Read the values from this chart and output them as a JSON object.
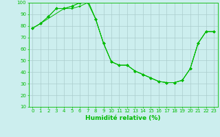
{
  "series": [
    {
      "x": [
        0,
        1,
        2,
        3,
        4,
        5,
        6,
        7,
        8,
        9,
        10,
        11,
        12,
        13,
        14,
        15,
        16,
        17,
        18,
        19,
        20,
        21,
        22,
        23
      ],
      "y": [
        78,
        82,
        88,
        95,
        95,
        97,
        100,
        102,
        86,
        65,
        49,
        46,
        46,
        41,
        38,
        35,
        32,
        31,
        31,
        33,
        43,
        65,
        75,
        75
      ],
      "marker": "D",
      "ms": 2.0
    },
    {
      "x": [
        0,
        1,
        4,
        5,
        6,
        7,
        8,
        9,
        10,
        11,
        12,
        13,
        14,
        15,
        16,
        17,
        18,
        19,
        20,
        21,
        22,
        23
      ],
      "y": [
        78,
        82,
        95,
        95,
        97,
        100,
        86,
        65,
        49,
        46,
        46,
        41,
        38,
        35,
        32,
        31,
        31,
        33,
        43,
        65,
        75,
        75
      ],
      "marker": ">",
      "ms": 2.0
    },
    {
      "x": [
        0,
        1,
        2,
        3,
        4,
        5,
        6,
        7,
        8,
        9,
        10,
        11,
        12,
        13,
        14,
        15,
        16,
        17,
        18,
        19,
        20,
        21,
        22,
        23
      ],
      "y": [
        78,
        82,
        88,
        95,
        95,
        97,
        100,
        102,
        86,
        65,
        49,
        46,
        46,
        41,
        38,
        35,
        32,
        31,
        31,
        33,
        43,
        65,
        75,
        75
      ],
      "marker": "D",
      "ms": 2.0
    }
  ],
  "xlabel": "Humidité relative (%)",
  "xlim": [
    -0.5,
    23.5
  ],
  "ylim": [
    10,
    100
  ],
  "yticks": [
    10,
    20,
    30,
    40,
    50,
    60,
    70,
    80,
    90,
    100
  ],
  "xticks": [
    0,
    1,
    2,
    3,
    4,
    5,
    6,
    7,
    8,
    9,
    10,
    11,
    12,
    13,
    14,
    15,
    16,
    17,
    18,
    19,
    20,
    21,
    22,
    23
  ],
  "line_color": "#00BB00",
  "bg_color": "#CCEEEE",
  "grid_color": "#AACCCC",
  "xlabel_fontsize": 6.5,
  "tick_fontsize": 5.0
}
